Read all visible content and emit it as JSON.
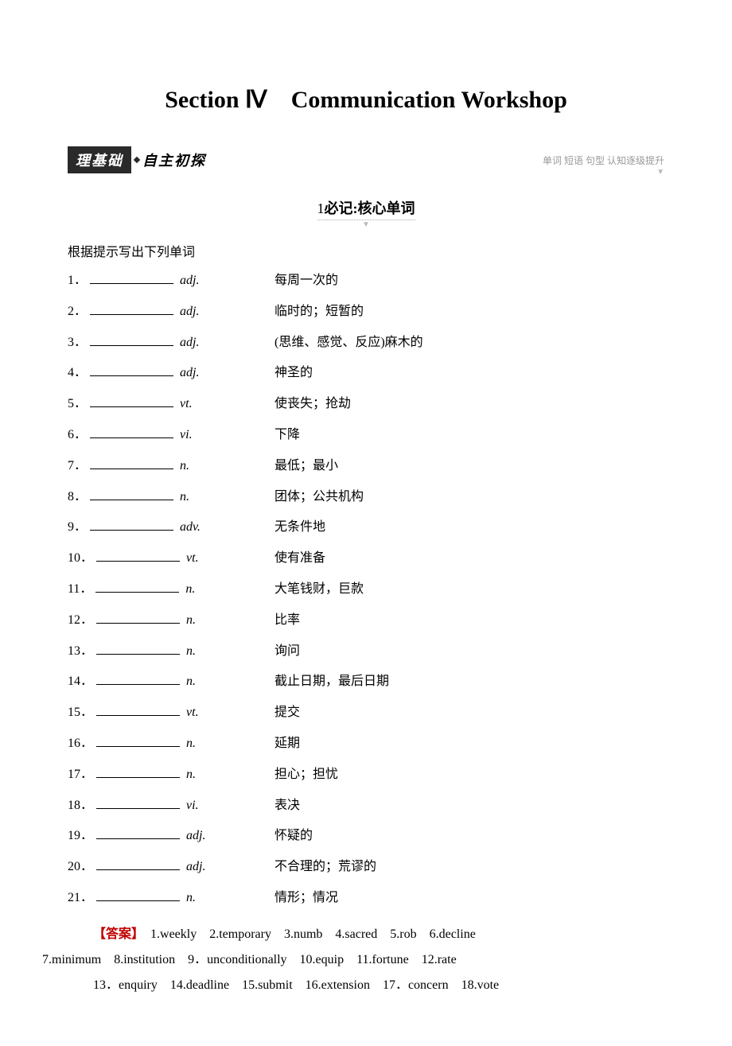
{
  "title": "Section Ⅳ　Communication Workshop",
  "header_dark": "理基础",
  "header_light": "自主初探",
  "header_right": "单词 短语 句型  认知逐级提升",
  "sub_heading_num": "1",
  "sub_heading_label": "必记:",
  "sub_heading_bold": "核心单词",
  "instruction": "根据提示写出下列单词",
  "words": [
    {
      "num": "1．",
      "pos": "adj.",
      "def": "每周一次的"
    },
    {
      "num": "2．",
      "pos": "adj.",
      "def": "临时的；短暂的"
    },
    {
      "num": "3．",
      "pos": "adj.",
      "def": "(思维、感觉、反应)麻木的"
    },
    {
      "num": "4．",
      "pos": "adj.",
      "def": "神圣的"
    },
    {
      "num": "5．",
      "pos": "vt.",
      "def": "使丧失；抢劫"
    },
    {
      "num": "6．",
      "pos": "vi.",
      "def": "下降"
    },
    {
      "num": "7．",
      "pos": "n.",
      "def": "最低；最小"
    },
    {
      "num": "8．",
      "pos": "n.",
      "def": "团体；公共机构"
    },
    {
      "num": "9．",
      "pos": "adv.",
      "def": "无条件地"
    },
    {
      "num": "10．",
      "pos": "vt.",
      "def": "使有准备"
    },
    {
      "num": "11．",
      "pos": "n.",
      "def": "大笔钱财，巨款"
    },
    {
      "num": "12．",
      "pos": "n.",
      "def": "比率"
    },
    {
      "num": "13．",
      "pos": "n.",
      "def": "询问"
    },
    {
      "num": "14．",
      "pos": "n.",
      "def": "截止日期，最后日期"
    },
    {
      "num": "15．",
      "pos": "vt.",
      "def": "提交"
    },
    {
      "num": "16．",
      "pos": "n.",
      "def": "延期"
    },
    {
      "num": "17．",
      "pos": "n.",
      "def": "担心；担忧"
    },
    {
      "num": "18．",
      "pos": "vi.",
      "def": "表决"
    },
    {
      "num": "19．",
      "pos": "adj.",
      "def": "怀疑的"
    },
    {
      "num": "20．",
      "pos": "adj.",
      "def": "不合理的；荒谬的"
    },
    {
      "num": "21．",
      "pos": "n.",
      "def": "情形；情况"
    }
  ],
  "answer_label": "【答案】",
  "answer_line1": "　1.weekly　2.temporary　3.numb　4.sacred　5.rob　6.decline",
  "answer_line2": "7.minimum　8.institution　9．unconditionally　10.equip　11.fortune　12.rate",
  "answer_line3": "13．enquiry　14.deadline　15.submit　16.extension　17．concern　18.vote"
}
